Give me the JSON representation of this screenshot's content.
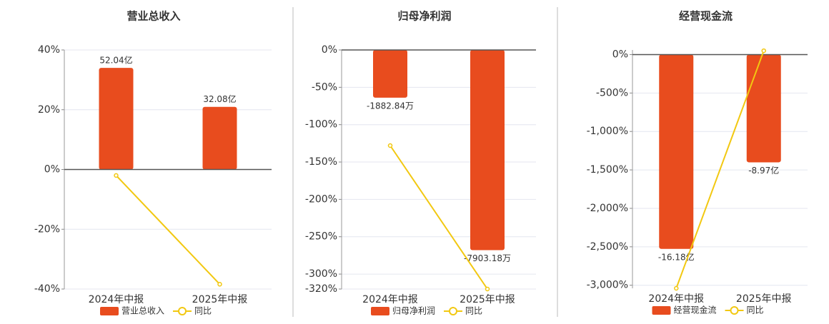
{
  "chart_data": [
    {
      "type": "bar",
      "title": "营业总收入",
      "categories": [
        "2024年中报",
        "2025年中报"
      ],
      "series": [
        {
          "name": "营业总收入",
          "color": "#e84c1e",
          "axis": "y2",
          "values": [
            52.04,
            32.08
          ],
          "value_labels": [
            "52.04亿",
            "32.08亿"
          ]
        },
        {
          "name": "同比",
          "type": "line",
          "color": "#f2c811",
          "values": [
            -2,
            -38.4
          ]
        }
      ],
      "ylim": [
        -40,
        40
      ],
      "yticks": [
        {
          "value": -40,
          "label": "-40%"
        },
        {
          "value": -20,
          "label": "-20%"
        },
        {
          "value": 0,
          "label": "0%"
        },
        {
          "value": 20,
          "label": "20%"
        },
        {
          "value": 40,
          "label": "40%"
        }
      ],
      "y2lim": [
        -61.2,
        61.2
      ],
      "grid": true
    },
    {
      "type": "bar",
      "title": "归母净利润",
      "categories": [
        "2024年中报",
        "2025年中报"
      ],
      "series": [
        {
          "name": "归母净利润",
          "color": "#e84c1e",
          "axis": "y2",
          "values": [
            -1882.84,
            -7903.18
          ],
          "value_labels": [
            "-1882.84万",
            "-7903.18万"
          ]
        },
        {
          "name": "同比",
          "type": "line",
          "color": "#f2c811",
          "values": [
            -128,
            -320
          ]
        }
      ],
      "ylim": [
        -320,
        0
      ],
      "yticks": [
        {
          "value": -320,
          "label": "-320%"
        },
        {
          "value": -300,
          "label": "-300%"
        },
        {
          "value": -250,
          "label": "-250%"
        },
        {
          "value": -200,
          "label": "-200%"
        },
        {
          "value": -150,
          "label": "-150%"
        },
        {
          "value": -100,
          "label": "-100%"
        },
        {
          "value": -50,
          "label": "-50%"
        },
        {
          "value": 0,
          "label": "0%"
        }
      ],
      "y2lim": [
        -9440,
        0
      ],
      "grid": true
    },
    {
      "type": "bar",
      "title": "经营现金流",
      "categories": [
        "2024年中报",
        "2025年中报"
      ],
      "series": [
        {
          "name": "经营现金流",
          "color": "#e84c1e",
          "axis": "y2",
          "values": [
            -16.18,
            -8.97
          ],
          "value_labels": [
            "-16.18亿",
            "-8.97亿"
          ]
        },
        {
          "name": "同比",
          "type": "line",
          "color": "#f2c811",
          "values": [
            -3040,
            50
          ]
        }
      ],
      "ylim": [
        -3040,
        60
      ],
      "yticks": [
        {
          "value": -3000,
          "label": "-3,000%"
        },
        {
          "value": -2500,
          "label": "-2,500%"
        },
        {
          "value": -2000,
          "label": "-2,000%"
        },
        {
          "value": -1500,
          "label": "-1,500%"
        },
        {
          "value": -1000,
          "label": "-1,000%"
        },
        {
          "value": -500,
          "label": "-500%"
        },
        {
          "value": 0,
          "label": "0%"
        }
      ],
      "y2lim": [
        -19.46,
        0.384
      ],
      "grid": true
    }
  ]
}
